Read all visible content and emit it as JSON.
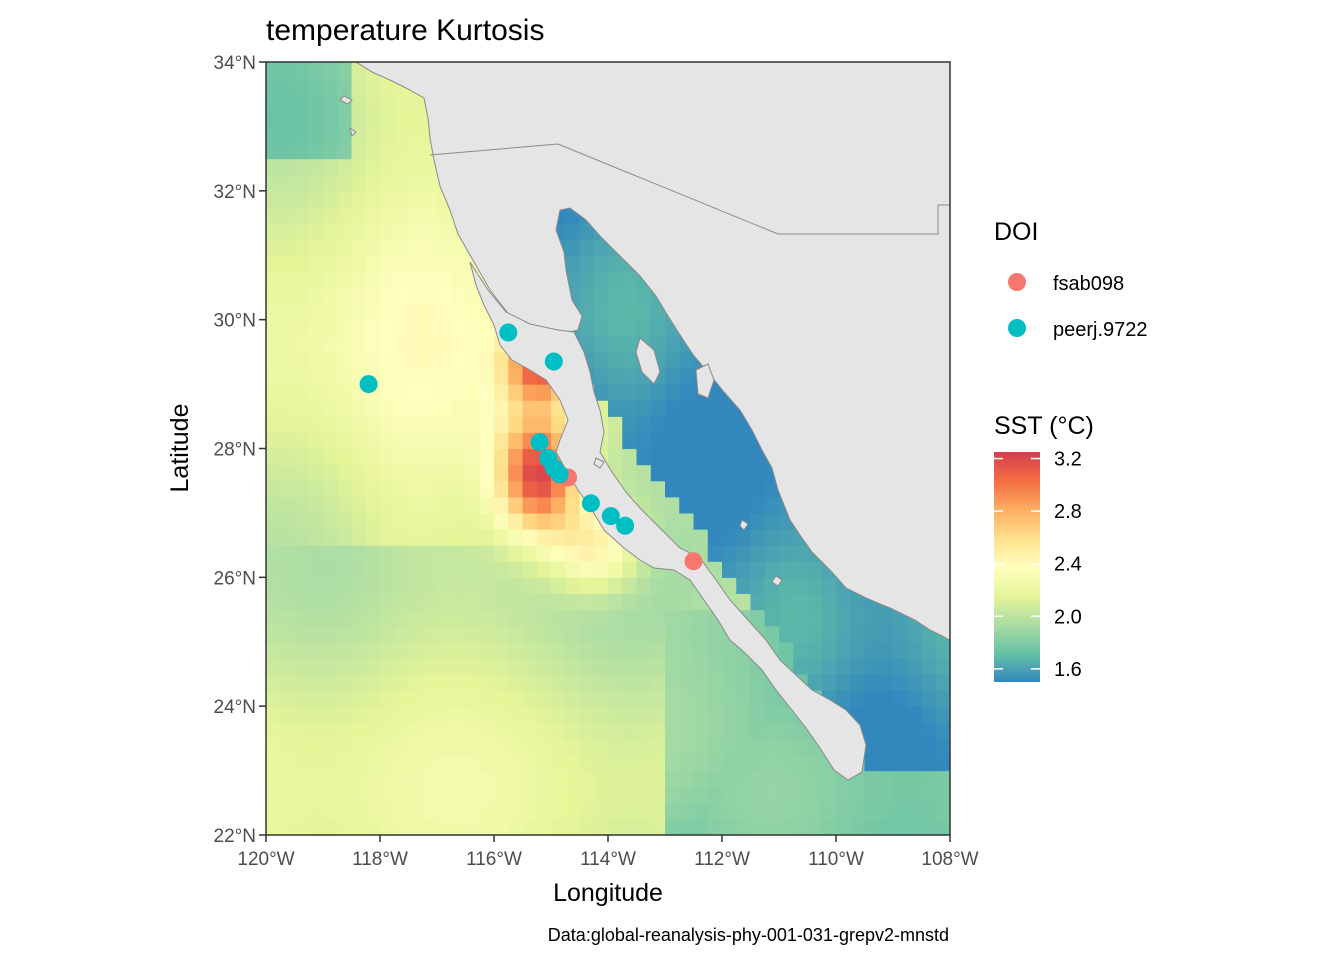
{
  "title": "temperature Kurtosis",
  "caption": "Data:global-reanalysis-phy-001-031-grepv2-mnstd",
  "colors": {
    "land": "#e5e5e5",
    "coast": "#8a8a8a",
    "fsab098": "#f8766d",
    "peerj.9722": "#00bfc4",
    "palette": [
      "#3288bd",
      "#66c2a5",
      "#abdda4",
      "#e6f598",
      "#ffffbf",
      "#fee08b",
      "#fdae61",
      "#f46d43",
      "#d53e4f"
    ]
  },
  "chart_data": {
    "type": "scatter",
    "title": "temperature Kurtosis",
    "xlabel": "Longitude",
    "ylabel": "Latitude",
    "xlim": [
      -120,
      -108
    ],
    "ylim": [
      22,
      34
    ],
    "x_ticks": [
      "120°W",
      "118°W",
      "116°W",
      "114°W",
      "112°W",
      "110°W",
      "108°W"
    ],
    "y_ticks": [
      "22°N",
      "24°N",
      "26°N",
      "28°N",
      "30°N",
      "32°N",
      "34°N"
    ],
    "grid": false,
    "legend_position": "right",
    "legend_points": {
      "title": "DOI",
      "entries": [
        {
          "label": "fsab098",
          "color": "#f8766d"
        },
        {
          "label": "peerj.9722",
          "color": "#00bfc4"
        }
      ]
    },
    "legend_fill": {
      "title": "SST (°C)",
      "ticks": [
        "3.2",
        "2.8",
        "2.4",
        "2.0",
        "1.6"
      ],
      "range": [
        1.5,
        3.25
      ]
    },
    "series": [
      {
        "name": "fsab098",
        "color": "#f8766d",
        "points": [
          {
            "lon": -114.7,
            "lat": 27.55
          },
          {
            "lon": -112.5,
            "lat": 26.25
          }
        ]
      },
      {
        "name": "peerj.9722",
        "color": "#00bfc4",
        "points": [
          {
            "lon": -115.75,
            "lat": 29.8
          },
          {
            "lon": -114.95,
            "lat": 29.35
          },
          {
            "lon": -118.2,
            "lat": 29.0
          },
          {
            "lon": -115.2,
            "lat": 28.1
          },
          {
            "lon": -115.05,
            "lat": 27.85
          },
          {
            "lon": -114.95,
            "lat": 27.7
          },
          {
            "lon": -114.85,
            "lat": 27.6
          },
          {
            "lon": -114.3,
            "lat": 27.15
          },
          {
            "lon": -113.95,
            "lat": 26.95
          },
          {
            "lon": -113.7,
            "lat": 26.8
          }
        ]
      }
    ]
  }
}
